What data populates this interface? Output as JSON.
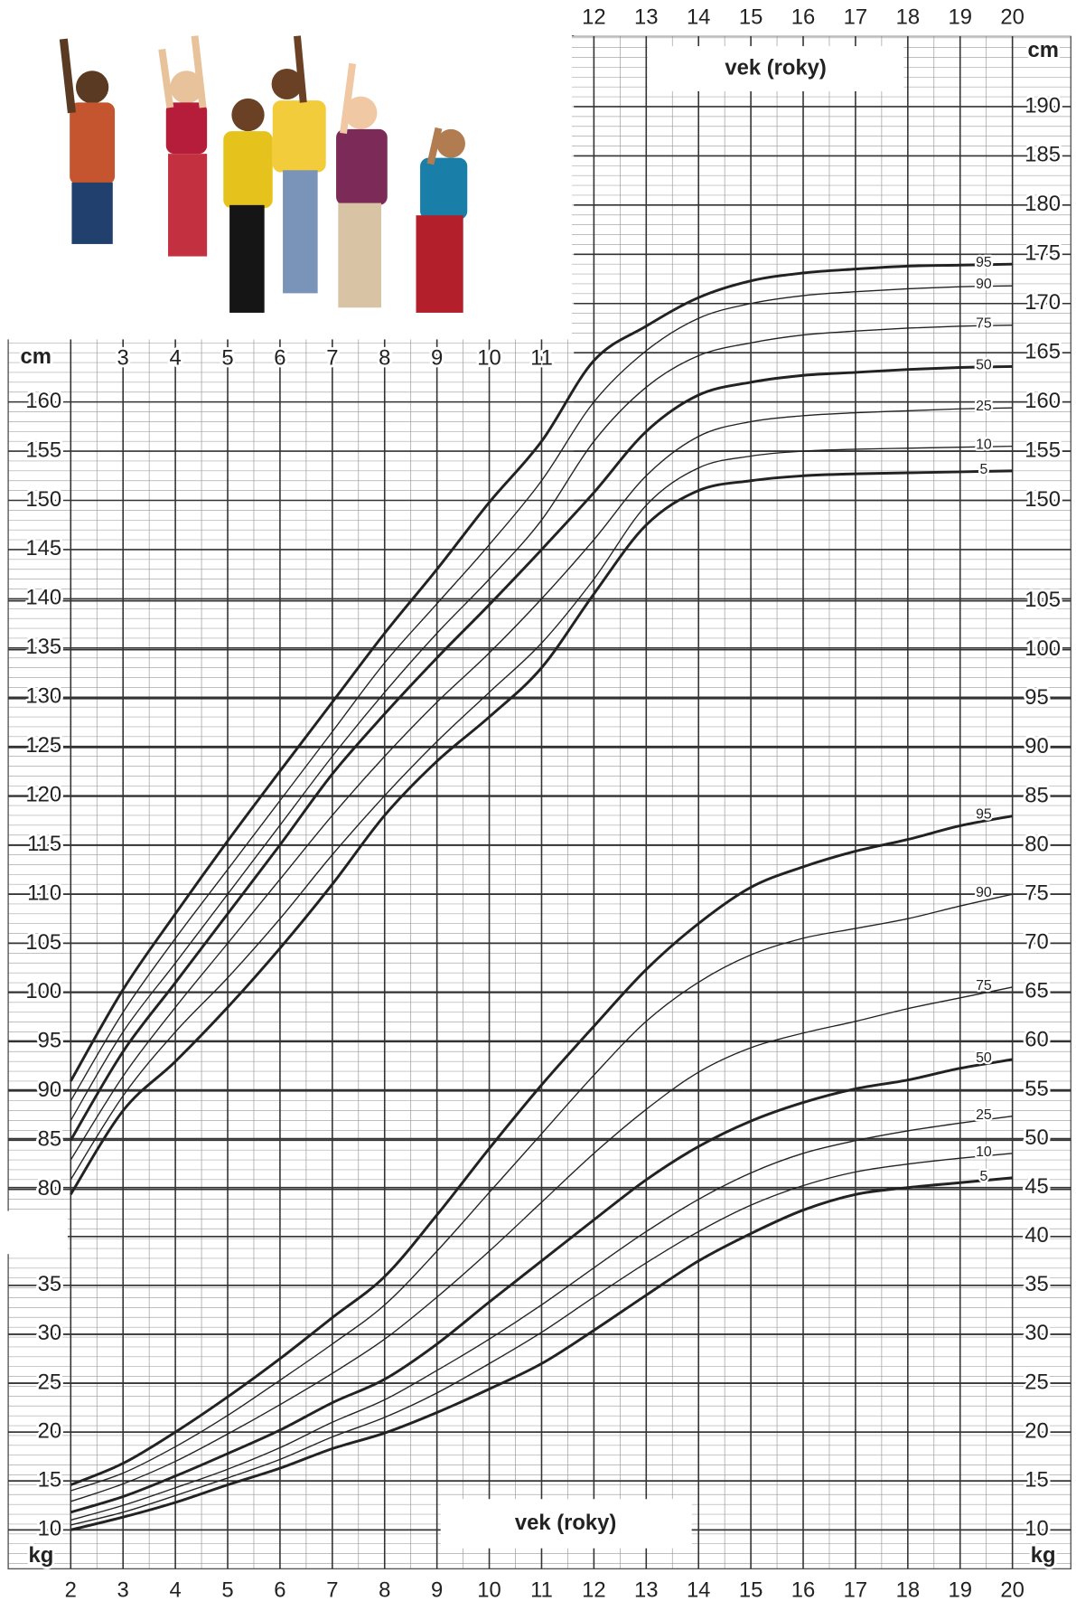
{
  "chart_data": {
    "type": "line",
    "x_label": "vek (roky)",
    "y_label": "cm",
    "y2_label": "kg",
    "x": [
      2,
      3,
      4,
      5,
      6,
      7,
      8,
      9,
      10,
      11,
      12,
      13,
      14,
      15,
      16,
      17,
      18,
      19,
      20
    ],
    "xlim": [
      2,
      20
    ],
    "xticks": [
      2,
      3,
      4,
      5,
      6,
      7,
      8,
      9,
      10,
      11,
      12,
      13,
      14,
      15,
      16,
      17,
      18,
      19,
      20
    ],
    "xticks_top": [
      12,
      13,
      14,
      15,
      16,
      17,
      18,
      19,
      20
    ],
    "xticks_inner": [
      3,
      4,
      5,
      6,
      7,
      8,
      9,
      10,
      11
    ],
    "ylim": [
      80,
      190
    ],
    "yticks": [
      80,
      85,
      90,
      95,
      100,
      105,
      110,
      115,
      120,
      125,
      130,
      135,
      140,
      145,
      150,
      155,
      160
    ],
    "yticks_right": [
      150,
      155,
      160,
      165,
      170,
      175,
      180,
      185,
      190
    ],
    "y2lim": [
      10,
      105
    ],
    "y2ticks": [
      10,
      15,
      20,
      25,
      30,
      35
    ],
    "y2ticks_right": [
      10,
      15,
      20,
      25,
      30,
      35,
      40,
      45,
      50,
      55,
      60,
      65,
      70,
      75,
      80,
      85,
      90,
      95,
      100,
      105
    ],
    "grid": true,
    "series": [
      {
        "name": "95",
        "color": "#222222",
        "line_width": 2.6,
        "values": [
          91,
          100.3,
          108,
          115.4,
          122.5,
          129.5,
          136.5,
          143,
          149.8,
          156,
          164.2,
          167.7,
          170.6,
          172.3,
          173.1,
          173.5,
          173.8,
          173.9,
          174
        ]
      },
      {
        "name": "90",
        "color": "#222222",
        "line_width": 1.2,
        "values": [
          89,
          98,
          105.5,
          112.5,
          119.5,
          126.5,
          133.5,
          139.5,
          145.5,
          152,
          160,
          165.2,
          168.5,
          170,
          170.8,
          171.2,
          171.5,
          171.7,
          171.8
        ]
      },
      {
        "name": "75",
        "color": "#222222",
        "line_width": 1.2,
        "values": [
          87,
          96,
          103,
          110,
          117,
          124,
          130.5,
          136.5,
          142,
          148,
          156,
          161.5,
          164.7,
          166,
          166.8,
          167.2,
          167.5,
          167.7,
          167.8
        ]
      },
      {
        "name": "50",
        "color": "#222222",
        "line_width": 2.6,
        "values": [
          85,
          94,
          101,
          108,
          115,
          122.2,
          128.3,
          134,
          139.4,
          145,
          150.8,
          157,
          160.7,
          162,
          162.7,
          163,
          163.3,
          163.5,
          163.6
        ]
      },
      {
        "name": "25",
        "color": "#222222",
        "line_width": 1.2,
        "values": [
          83,
          91.5,
          98.5,
          105,
          111.5,
          118,
          124,
          129.5,
          134.5,
          140,
          146,
          152.5,
          156.5,
          158,
          158.6,
          158.9,
          159.1,
          159.3,
          159.4
        ]
      },
      {
        "name": "10",
        "color": "#222222",
        "line_width": 1.2,
        "values": [
          81,
          89.5,
          96,
          101.5,
          107.5,
          114,
          120,
          125.5,
          130.5,
          135.5,
          142,
          149.5,
          153.3,
          154.5,
          155,
          155.2,
          155.3,
          155.4,
          155.5
        ]
      },
      {
        "name": "5",
        "color": "#222222",
        "line_width": 2.6,
        "values": [
          79.5,
          88,
          93,
          98.5,
          104.5,
          111,
          118,
          123.5,
          128,
          133,
          140.5,
          147.5,
          151,
          152,
          152.5,
          152.7,
          152.8,
          152.9,
          153
        ]
      },
      {
        "name": "95",
        "color": "#222222",
        "line_width": 2.6,
        "axis": "y2",
        "values": [
          14.6,
          16.8,
          20,
          23.6,
          27.5,
          31.7,
          35.9,
          42.2,
          49,
          55.5,
          61.5,
          67.3,
          72,
          75.7,
          77.8,
          79.4,
          80.6,
          82,
          83
        ]
      },
      {
        "name": "90",
        "color": "#222222",
        "line_width": 1.2,
        "axis": "y2",
        "values": [
          14,
          15.8,
          18.5,
          21.7,
          25.3,
          29,
          33,
          38.5,
          44.5,
          50.5,
          56.5,
          62,
          66,
          68.8,
          70.5,
          71.5,
          72.5,
          73.8,
          75
        ]
      },
      {
        "name": "75",
        "color": "#222222",
        "line_width": 1.2,
        "axis": "y2",
        "values": [
          12.9,
          14.7,
          17,
          19.8,
          22.8,
          26,
          29.5,
          33.8,
          38.5,
          43.5,
          48.5,
          53,
          56.8,
          59.3,
          60.8,
          62,
          63.3,
          64.4,
          65.5
        ]
      },
      {
        "name": "50",
        "color": "#222222",
        "line_width": 2.6,
        "axis": "y2",
        "values": [
          11.8,
          13.4,
          15.5,
          17.8,
          20.2,
          23,
          25.4,
          29,
          33.3,
          37.5,
          41.7,
          45.8,
          49.2,
          51.8,
          53.7,
          55.1,
          56,
          57.2,
          58.1
        ]
      },
      {
        "name": "25",
        "color": "#222222",
        "line_width": 1.2,
        "axis": "y2",
        "values": [
          11,
          12.5,
          14.3,
          16.2,
          18.4,
          21,
          23.3,
          26.3,
          29.5,
          33,
          36.8,
          40.5,
          43.8,
          46.5,
          48.5,
          49.8,
          50.8,
          51.6,
          52.3
        ]
      },
      {
        "name": "10",
        "color": "#222222",
        "line_width": 1.2,
        "axis": "y2",
        "values": [
          10.5,
          11.8,
          13.5,
          15.3,
          17.2,
          19.5,
          21.5,
          24,
          27,
          30.2,
          33.8,
          37.3,
          40.5,
          43.2,
          45.2,
          46.6,
          47.4,
          48,
          48.5
        ]
      },
      {
        "name": "5",
        "color": "#222222",
        "line_width": 2.6,
        "axis": "y2",
        "values": [
          10,
          11.3,
          12.8,
          14.6,
          16.3,
          18.3,
          19.9,
          22,
          24.4,
          27,
          30.4,
          34,
          37.5,
          40.3,
          42.7,
          44.3,
          45,
          45.5,
          46
        ]
      }
    ]
  }
}
